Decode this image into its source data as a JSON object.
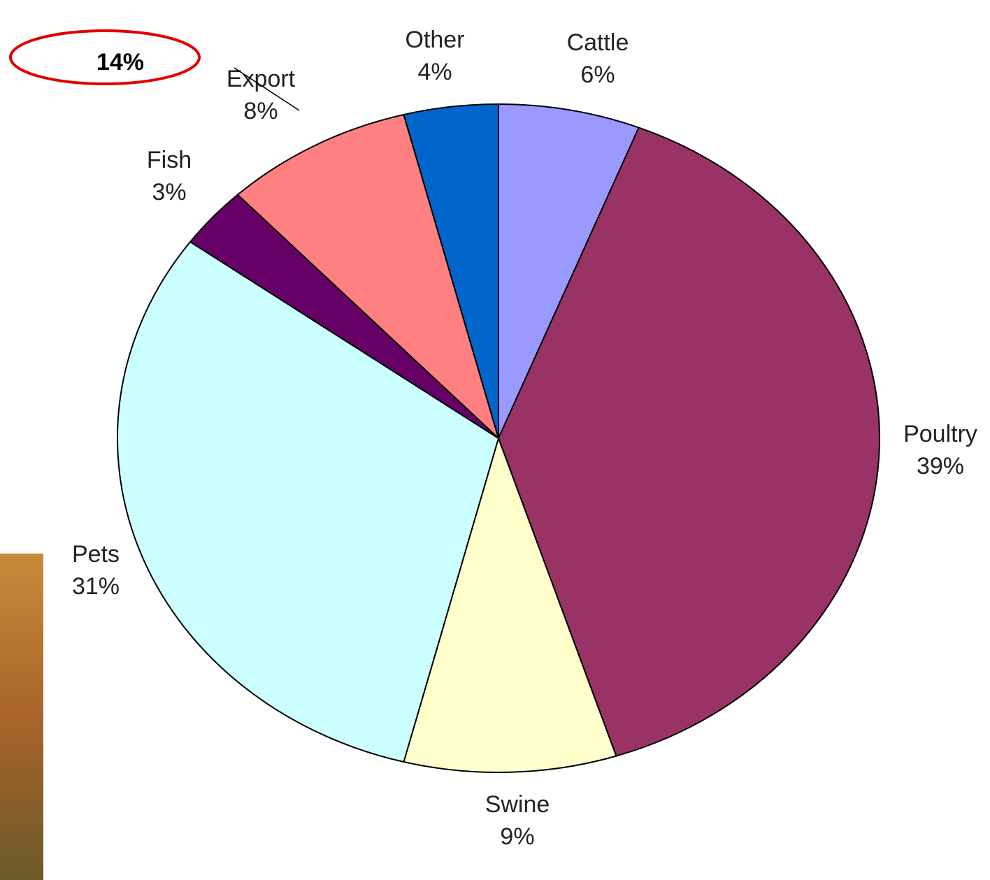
{
  "chart_data": {
    "type": "pie",
    "categories": [
      "Cattle",
      "Poultry",
      "Swine",
      "Pets",
      "Fish",
      "Export",
      "Other"
    ],
    "values": [
      6,
      39,
      9,
      31,
      3,
      8,
      4
    ],
    "value_labels": [
      "6%",
      "39%",
      "9%",
      "31%",
      "3%",
      "8%",
      "4%"
    ],
    "colors": [
      "#9999ff",
      "#993366",
      "#ffffcc",
      "#ccffff",
      "#660066",
      "#ff8080",
      "#0066cc"
    ],
    "annotation": "14%"
  }
}
